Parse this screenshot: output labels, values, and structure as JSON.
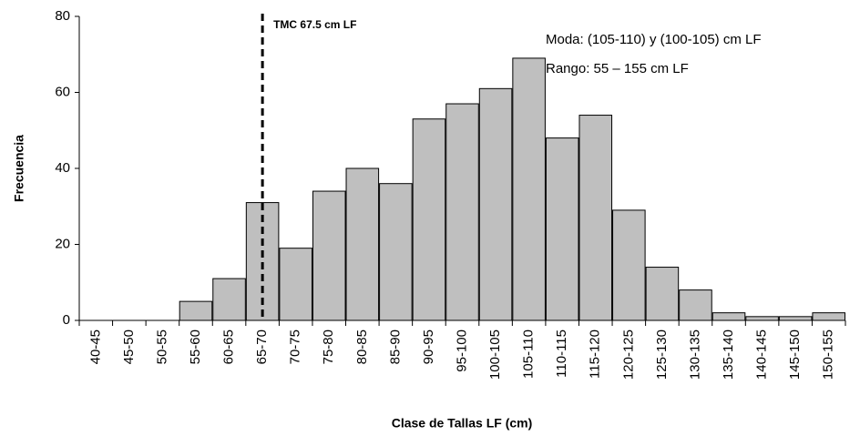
{
  "chart_data": {
    "type": "bar",
    "x_label": "Clase de Tallas LF (cm)",
    "y_label": "Frecuencia",
    "categories": [
      "40-45",
      "45-50",
      "50-55",
      "55-60",
      "60-65",
      "65-70",
      "70-75",
      "75-80",
      "80-85",
      "85-90",
      "90-95",
      "95-100",
      "100-105",
      "105-110",
      "110-115",
      "115-120",
      "120-125",
      "125-130",
      "130-135",
      "135-140",
      "140-145",
      "145-150",
      "150-155"
    ],
    "values": [
      0,
      0,
      0,
      5,
      11,
      31,
      19,
      34,
      40,
      36,
      53,
      57,
      61,
      69,
      48,
      54,
      29,
      14,
      8,
      2,
      1,
      1,
      2
    ],
    "color": "#bfbfbf",
    "ylim": [
      0,
      80
    ],
    "yticks": [
      0,
      20,
      40,
      60,
      80
    ],
    "grid": false,
    "reference_line": {
      "value": 67.5,
      "label": "TMC 67.5 cm LF"
    },
    "annotations": [
      "Moda: (105-110) y (100-105) cm LF",
      "Rango: 55 – 155 cm LF"
    ]
  }
}
